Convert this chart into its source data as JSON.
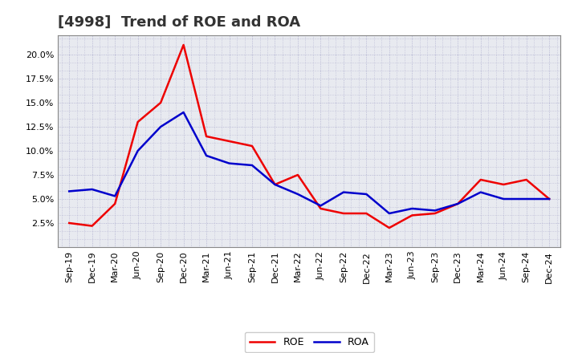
{
  "title": "[4998]  Trend of ROE and ROA",
  "x_labels": [
    "Sep-19",
    "Dec-19",
    "Mar-20",
    "Jun-20",
    "Sep-20",
    "Dec-20",
    "Mar-21",
    "Jun-21",
    "Sep-21",
    "Dec-21",
    "Mar-22",
    "Jun-22",
    "Sep-22",
    "Dec-22",
    "Mar-23",
    "Jun-23",
    "Sep-23",
    "Dec-23",
    "Mar-24",
    "Jun-24",
    "Sep-24",
    "Dec-24"
  ],
  "roe_values": [
    2.5,
    2.2,
    4.5,
    13.0,
    15.0,
    21.0,
    11.5,
    11.0,
    10.5,
    6.5,
    7.5,
    4.0,
    3.5,
    3.5,
    2.0,
    3.3,
    3.5,
    4.5,
    7.0,
    6.5,
    7.0,
    5.0
  ],
  "roa_values": [
    5.8,
    6.0,
    5.3,
    10.0,
    12.5,
    14.0,
    9.5,
    8.7,
    8.5,
    6.5,
    5.5,
    4.3,
    5.7,
    5.5,
    3.5,
    4.0,
    3.8,
    4.5,
    5.7,
    5.0,
    5.0,
    5.0
  ],
  "roe_color": "#ee0000",
  "roa_color": "#0000cc",
  "ylim_min": 0,
  "ylim_max": 22.0,
  "yticks": [
    2.5,
    5.0,
    7.5,
    10.0,
    12.5,
    15.0,
    17.5,
    20.0
  ],
  "ytick_labels": [
    "2.5%",
    "5.0%",
    "7.5%",
    "10.0%",
    "12.5%",
    "15.0%",
    "17.5%",
    "20.0%"
  ],
  "bg_color": "#ffffff",
  "plot_bg_color": "#e8eaf0",
  "grid_color": "#aaaacc",
  "line_width": 1.8,
  "title_fontsize": 13,
  "tick_fontsize": 8,
  "legend_fontsize": 9
}
